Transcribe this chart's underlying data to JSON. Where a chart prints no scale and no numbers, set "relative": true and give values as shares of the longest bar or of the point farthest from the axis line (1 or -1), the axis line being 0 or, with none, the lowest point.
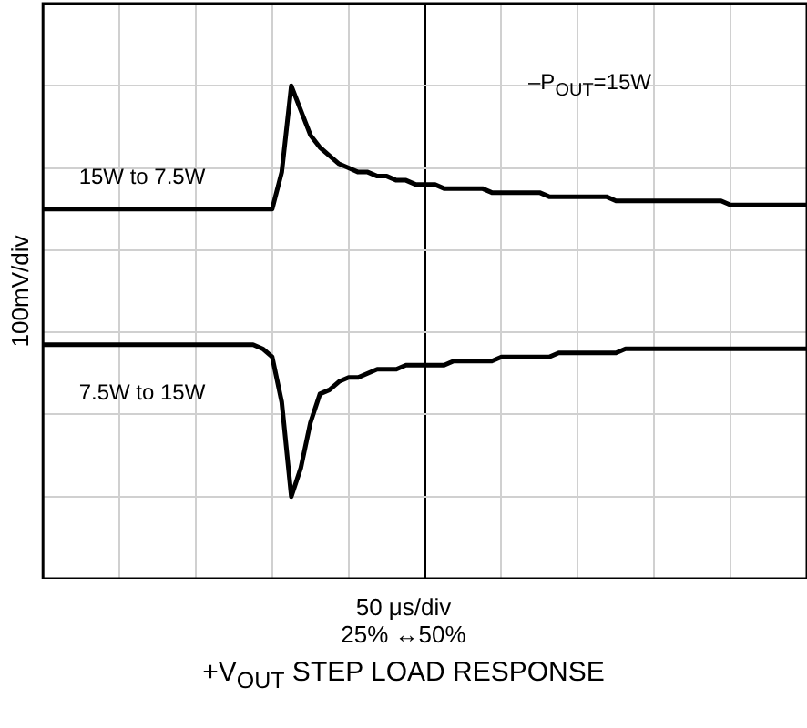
{
  "chart_data": {
    "type": "line",
    "relative": true,
    "title": "+V$_{OUT}$ STEP LOAD RESPONSE",
    "xlabel": "50 μs/div",
    "ylabel": "100mV/div",
    "annotations": [
      "25% ↔50%",
      "–P$_{OUT}$=15W"
    ],
    "grid": true,
    "legend": false,
    "marker": "none",
    "line_style": "solid",
    "categories": [
      null,
      null,
      null,
      null,
      null,
      null,
      null,
      null,
      null,
      null,
      null,
      null,
      null,
      null,
      null,
      null,
      null,
      null,
      null,
      null,
      null,
      null,
      null,
      null,
      null,
      null,
      null,
      null,
      null,
      null,
      null,
      null,
      null,
      null,
      null,
      null,
      null,
      null,
      null,
      null,
      null,
      null,
      null,
      null,
      null,
      null,
      null,
      null,
      null,
      null,
      null,
      null,
      null,
      null,
      null,
      null,
      null,
      null,
      null,
      null,
      null,
      null,
      null,
      null,
      null,
      null,
      null,
      null,
      null,
      null,
      null,
      null,
      null,
      null,
      null,
      null,
      null,
      null,
      null,
      null,
      null
    ],
    "series": [
      {
        "name": "15W to 7.5W",
        "color": "#000000",
        "values": [
          0.7,
          0.7,
          0.7,
          0.7,
          0.7,
          0.7,
          0.7,
          0.7,
          0.7,
          0.7,
          0.7,
          0.7,
          0.7,
          0.7,
          0.7,
          0.7,
          0.7,
          0.7,
          0.7,
          0.7,
          0.7,
          0.7,
          0.7,
          0.7,
          0.7,
          0.79,
          1,
          0.94,
          0.88,
          0.85,
          0.83,
          0.81,
          0.8,
          0.79,
          0.79,
          0.78,
          0.78,
          0.77,
          0.77,
          0.76,
          0.76,
          0.76,
          0.75,
          0.75,
          0.75,
          0.75,
          0.75,
          0.74,
          0.74,
          0.74,
          0.74,
          0.74,
          0.74,
          0.73,
          0.73,
          0.73,
          0.73,
          0.73,
          0.73,
          0.73,
          0.72,
          0.72,
          0.72,
          0.72,
          0.72,
          0.72,
          0.72,
          0.72,
          0.72,
          0.72,
          0.72,
          0.72,
          0.71,
          0.71,
          0.71,
          0.71,
          0.71,
          0.71,
          0.71,
          0.71,
          0.71
        ]
      },
      {
        "name": "7.5W to 15W",
        "color": "#000000",
        "values": [
          0.37,
          0.37,
          0.37,
          0.37,
          0.37,
          0.37,
          0.37,
          0.37,
          0.37,
          0.37,
          0.37,
          0.37,
          0.37,
          0.37,
          0.37,
          0.37,
          0.37,
          0.37,
          0.37,
          0.37,
          0.37,
          0.37,
          0.37,
          0.36,
          0.34,
          0.23,
          0,
          0.07,
          0.18,
          0.25,
          0.26,
          0.28,
          0.29,
          0.29,
          0.3,
          0.31,
          0.31,
          0.31,
          0.32,
          0.32,
          0.32,
          0.32,
          0.32,
          0.33,
          0.33,
          0.33,
          0.33,
          0.33,
          0.34,
          0.34,
          0.34,
          0.34,
          0.34,
          0.34,
          0.35,
          0.35,
          0.35,
          0.35,
          0.35,
          0.35,
          0.35,
          0.36,
          0.36,
          0.36,
          0.36,
          0.36,
          0.36,
          0.36,
          0.36,
          0.36,
          0.36,
          0.36,
          0.36,
          0.36,
          0.36,
          0.36,
          0.36,
          0.36,
          0.36,
          0.36,
          0.36
        ]
      }
    ]
  }
}
